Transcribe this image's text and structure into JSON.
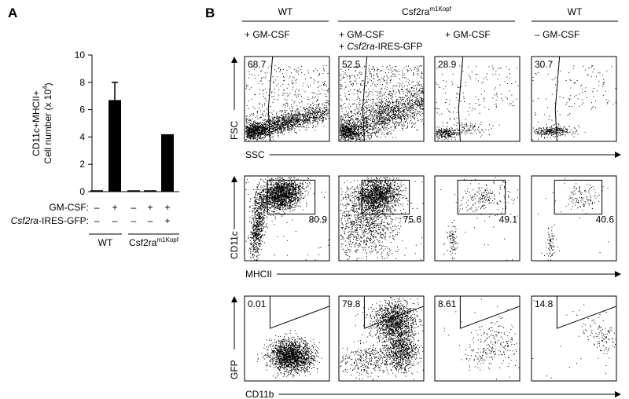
{
  "panel_a": {
    "label": "A",
    "chart": {
      "type": "bar",
      "y_label_line1": "CD11c+MHCII+",
      "y_label_line2": "Cell number (x 10",
      "y_label_sup": "4",
      "y_label_end": ")",
      "values": [
        0.1,
        6.7,
        0.1,
        0.1,
        4.2
      ],
      "errors": [
        null,
        1.3,
        null,
        null,
        null
      ],
      "color": "#000000",
      "ylim": [
        0,
        10
      ],
      "yticks": [
        0,
        2,
        4,
        6,
        8,
        10
      ],
      "conditions": [
        {
          "label": "GM-CSF:",
          "marks": [
            "–",
            "+",
            "–",
            "+",
            "+"
          ]
        },
        {
          "label_italic": "Csf2ra",
          "label": "-IRES-GFP:",
          "marks": [
            "–",
            "–",
            "–",
            "–",
            "+"
          ]
        }
      ],
      "groups": [
        {
          "text": "WT"
        },
        {
          "text": "Csf2ra",
          "superscript": "m1Kopf"
        }
      ]
    }
  },
  "panel_b": {
    "label": "B",
    "headers": [
      {
        "text": "WT"
      },
      {
        "text": "Csf2ra",
        "superscript": "m1Kopf"
      },
      {
        "text": "WT"
      }
    ],
    "conditions": [
      {
        "line1": "+ GM-CSF"
      },
      {
        "line1": "+ GM-CSF",
        "line2_prefix": "+ ",
        "line2_italic": "Csf2ra",
        "line2_rest": "-IRES-GFP"
      },
      {
        "line1": "+ GM-CSF"
      },
      {
        "line1": "– GM-CSF"
      }
    ],
    "rows": [
      {
        "y_axis": "FSC",
        "x_axis": "SSC",
        "percentages": [
          68.7,
          52.5,
          28.9,
          30.7
        ]
      },
      {
        "y_axis": "CD11c",
        "x_axis": "MHCII",
        "percentages": [
          80.9,
          75.6,
          49.1,
          40.6
        ]
      },
      {
        "y_axis": "GFP",
        "x_axis": "CD11b",
        "percentages": [
          0.01,
          79.8,
          8.61,
          14.8
        ]
      }
    ]
  }
}
